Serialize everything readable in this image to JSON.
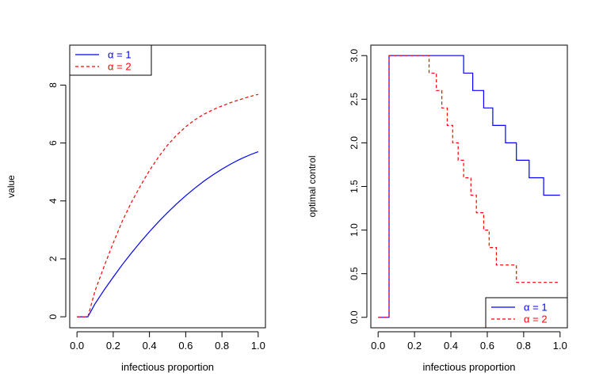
{
  "chart_data": [
    {
      "type": "line",
      "xlabel": "infectious proportion",
      "ylabel": "value",
      "xlim": [
        -0.04,
        1.04
      ],
      "ylim": [
        -0.38,
        9.38
      ],
      "xticks": [
        0.0,
        0.2,
        0.4,
        0.6,
        0.8,
        1.0
      ],
      "xtick_labels": [
        "0.0",
        "0.2",
        "0.4",
        "0.6",
        "0.8",
        "1.0"
      ],
      "yticks": [
        0,
        2,
        4,
        6,
        8
      ],
      "ytick_labels": [
        "0",
        "2",
        "4",
        "6",
        "8"
      ],
      "legend_position": "top-left",
      "series": [
        {
          "name": "α = 1",
          "color": "#0000ff",
          "style": "solid",
          "x": [
            0.0,
            0.05,
            0.06,
            0.1,
            0.15,
            0.2,
            0.25,
            0.3,
            0.35,
            0.4,
            0.45,
            0.5,
            0.55,
            0.6,
            0.65,
            0.7,
            0.75,
            0.8,
            0.85,
            0.9,
            0.95,
            1.0
          ],
          "y": [
            0.0,
            0.0,
            0.0,
            0.45,
            0.93,
            1.37,
            1.8,
            2.2,
            2.58,
            2.94,
            3.28,
            3.6,
            3.9,
            4.18,
            4.44,
            4.68,
            4.9,
            5.1,
            5.28,
            5.44,
            5.58,
            5.7
          ]
        },
        {
          "name": "α = 2",
          "color": "#ff0000",
          "style": "dashed",
          "x": [
            0.0,
            0.05,
            0.06,
            0.1,
            0.15,
            0.2,
            0.25,
            0.3,
            0.35,
            0.4,
            0.45,
            0.5,
            0.55,
            0.6,
            0.65,
            0.7,
            0.75,
            0.8,
            0.85,
            0.9,
            0.95,
            1.0
          ],
          "y": [
            0.0,
            0.0,
            0.0,
            0.9,
            1.75,
            2.55,
            3.3,
            3.95,
            4.52,
            5.05,
            5.52,
            5.93,
            6.27,
            6.56,
            6.8,
            6.99,
            7.15,
            7.28,
            7.4,
            7.5,
            7.6,
            7.68
          ]
        }
      ]
    },
    {
      "type": "line",
      "xlabel": "infectious proportion",
      "ylabel": "optimal control",
      "xlim": [
        -0.04,
        1.04
      ],
      "ylim": [
        -0.12,
        3.12
      ],
      "xticks": [
        0.0,
        0.2,
        0.4,
        0.6,
        0.8,
        1.0
      ],
      "xtick_labels": [
        "0.0",
        "0.2",
        "0.4",
        "0.6",
        "0.8",
        "1.0"
      ],
      "yticks": [
        0.0,
        0.5,
        1.0,
        1.5,
        2.0,
        2.5,
        3.0
      ],
      "ytick_labels": [
        "0.0",
        "0.5",
        "1.0",
        "1.5",
        "2.0",
        "2.5",
        "3.0"
      ],
      "legend_position": "bottom-right",
      "series": [
        {
          "name": "α = 1",
          "color": "#0000ff",
          "style": "solid",
          "step": true,
          "x": [
            0.0,
            0.05,
            0.06,
            0.47,
            0.52,
            0.58,
            0.63,
            0.7,
            0.76,
            0.83,
            0.91,
            1.0
          ],
          "y": [
            0.0,
            0.0,
            3.0,
            2.8,
            2.6,
            2.4,
            2.2,
            2.0,
            1.8,
            1.6,
            1.4,
            1.4
          ]
        },
        {
          "name": "α = 2",
          "color": "#ff0000",
          "style": "dashed",
          "step": true,
          "x": [
            0.0,
            0.05,
            0.06,
            0.28,
            0.32,
            0.35,
            0.38,
            0.41,
            0.44,
            0.47,
            0.51,
            0.54,
            0.58,
            0.61,
            0.65,
            0.69,
            0.76,
            0.91,
            1.0
          ],
          "y": [
            0.0,
            0.0,
            3.0,
            2.8,
            2.6,
            2.4,
            2.2,
            2.0,
            1.8,
            1.6,
            1.4,
            1.2,
            1.0,
            0.8,
            0.6,
            0.6,
            0.4,
            0.4,
            0.4
          ]
        }
      ]
    }
  ]
}
